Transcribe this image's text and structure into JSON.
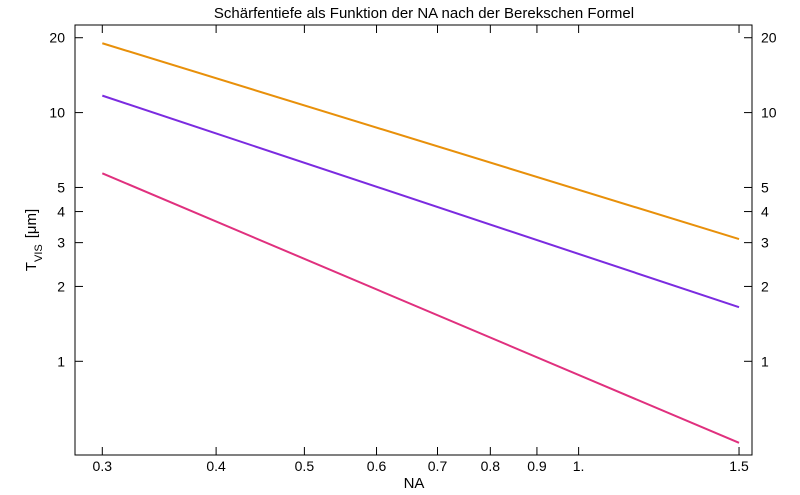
{
  "chart_data": {
    "type": "line",
    "title": "Schärfentiefe als Funktion der NA nach der Berekschen Formel",
    "xlabel": "NA",
    "ylabel": {
      "main": "T",
      "sub": "VIS",
      "unit": "[μm]"
    },
    "x_scale": "log",
    "y_scale": "log",
    "xlim": [
      0.28,
      1.55
    ],
    "ylim": [
      0.42,
      22.5
    ],
    "x_ticks": [
      {
        "value": 0.3,
        "label": "0.3"
      },
      {
        "value": 0.4,
        "label": "0.4"
      },
      {
        "value": 0.5,
        "label": "0.5"
      },
      {
        "value": 0.6,
        "label": "0.6"
      },
      {
        "value": 0.7,
        "label": "0.7"
      },
      {
        "value": 0.8,
        "label": "0.8"
      },
      {
        "value": 0.9,
        "label": "0.9"
      },
      {
        "value": 1.0,
        "label": "1."
      },
      {
        "value": 1.5,
        "label": "1.5"
      }
    ],
    "y_ticks": [
      {
        "value": 1,
        "label": "1"
      },
      {
        "value": 2,
        "label": "2"
      },
      {
        "value": 3,
        "label": "3"
      },
      {
        "value": 4,
        "label": "4"
      },
      {
        "value": 5,
        "label": "5"
      },
      {
        "value": 10,
        "label": "10"
      },
      {
        "value": 20,
        "label": "20"
      }
    ],
    "grid": false,
    "series": [
      {
        "color": "#e8900a",
        "x": [
          0.3,
          1.5
        ],
        "y": [
          19.0,
          3.1
        ]
      },
      {
        "color": "#7b2be0",
        "x": [
          0.3,
          1.5
        ],
        "y": [
          11.7,
          1.65
        ]
      },
      {
        "color": "#e0307e",
        "x": [
          0.3,
          1.5
        ],
        "y": [
          5.7,
          0.47
        ]
      }
    ]
  }
}
